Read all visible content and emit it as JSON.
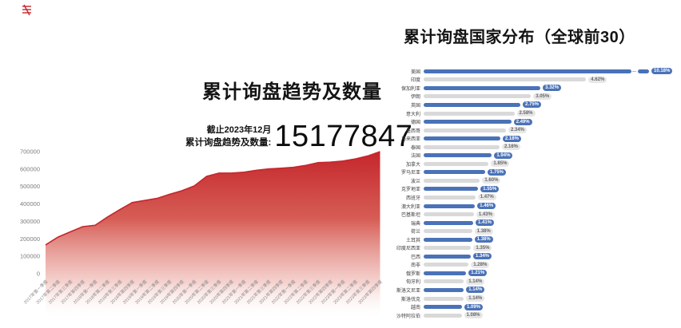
{
  "chart_data": [
    {
      "type": "area",
      "title": "累计询盘趋势及数量",
      "note": "截止2023年12月",
      "stat_label": "累计询盘趋势及数量:",
      "stat_value": "15177847",
      "x": [
        "2017年第一季度",
        "2017年第二季度",
        "2017年第三季度",
        "2017年第四季度",
        "2018年第一季度",
        "2018年第二季度",
        "2018年第三季度",
        "2018年第四季度",
        "2019年第一季度",
        "2019年第二季度",
        "2019年第三季度",
        "2019年第四季度",
        "2020年第一季度",
        "2020年第二季度",
        "2020年第三季度",
        "2020年第四季度",
        "2021年第一季度",
        "2021年第二季度",
        "2021年第三季度",
        "2021年第四季度",
        "2022年第一季度",
        "2022年第二季度",
        "2022年第三季度",
        "2022年第四季度",
        "2023年第一季度",
        "2023年第二季度",
        "2023年第三季度",
        "2023年第四季度"
      ],
      "values": [
        165000,
        210000,
        240000,
        270000,
        278000,
        325000,
        368000,
        408000,
        420000,
        432000,
        455000,
        476000,
        503000,
        558000,
        577000,
        577000,
        582000,
        593000,
        601000,
        605000,
        610000,
        621000,
        637000,
        640000,
        646000,
        658000,
        675000,
        700000
      ],
      "ylim": [
        0,
        700000
      ],
      "yticks": [
        700000,
        600000,
        500000,
        400000,
        300000,
        200000,
        100000,
        0
      ],
      "grid": false,
      "legend": false,
      "line_color": "#c4262c",
      "fill_gradient": [
        "#c5262c",
        "#d4544c",
        "#f2c3bf",
        "#ffffff"
      ]
    },
    {
      "type": "bar",
      "orientation": "horizontal",
      "title": "累计询盘国家分布（全球前30）",
      "alternating_colors": [
        "#4a72b8",
        "#d9d9d9"
      ],
      "first_bar_axis_break": true,
      "categories": [
        "美国",
        "印度",
        "保加利亚",
        "伊朗",
        "英国",
        "意大利",
        "德国",
        "墨西哥",
        "马来西亚",
        "泰国",
        "法国",
        "加拿大",
        "罗马尼亚",
        "波兰",
        "克罗地亚",
        "西班牙",
        "澳大利亚",
        "巴基斯坦",
        "瑞典",
        "荷兰",
        "土耳其",
        "印度尼西亚",
        "巴西",
        "南非",
        "俄罗斯",
        "匈牙利",
        "斯洛文尼亚",
        "斯洛伐克",
        "越南",
        "沙特阿拉伯"
      ],
      "values": [
        10.18,
        4.62,
        3.32,
        3.05,
        2.75,
        2.58,
        2.49,
        2.34,
        2.18,
        2.16,
        1.94,
        1.85,
        1.75,
        1.6,
        1.55,
        1.47,
        1.46,
        1.43,
        1.41,
        1.38,
        1.38,
        1.35,
        1.34,
        1.28,
        1.21,
        1.14,
        1.14,
        1.14,
        1.09,
        1.08
      ],
      "value_labels": [
        "10.18%",
        "4.62%",
        "3.32%",
        "3.05%",
        "2.75%",
        "2.58%",
        "2.49%",
        "2.34%",
        "2.18%",
        "2.16%",
        "1.94%",
        "1.85%",
        "1.75%",
        "1.60%",
        "1.55%",
        "1.47%",
        "1.46%",
        "1.43%",
        "1.41%",
        "1.38%",
        "1.38%",
        "1.35%",
        "1.34%",
        "1.28%",
        "1.21%",
        "1.14%",
        "1.14%",
        "1.14%",
        "1.09%",
        "1.08%"
      ]
    }
  ]
}
